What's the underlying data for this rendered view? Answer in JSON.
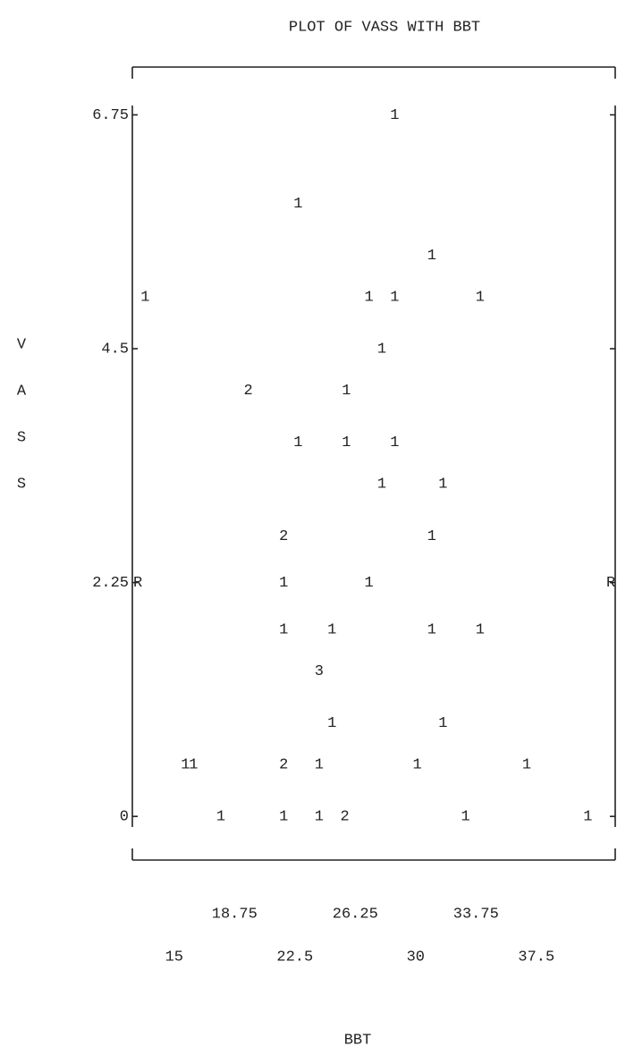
{
  "chart_data": {
    "type": "scatter",
    "title": "PLOT OF VASS WITH BBT",
    "x_label": "BBT",
    "y_label": [
      "V",
      "A",
      "S",
      "S"
    ],
    "ref_label": "R",
    "x": [
      28.7,
      22.7,
      31.0,
      13.2,
      27.1,
      28.7,
      34.0,
      27.9,
      19.6,
      25.7,
      22.7,
      25.7,
      28.7,
      27.9,
      31.7,
      21.8,
      31.0,
      21.8,
      27.1,
      21.8,
      24.8,
      31.0,
      34.0,
      24.0,
      24.8,
      31.7,
      15.7,
      16.2,
      21.8,
      24.0,
      30.1,
      36.9,
      17.9,
      21.8,
      24.0,
      25.6,
      33.1,
      40.7
    ],
    "values": [
      6.75,
      5.9,
      5.4,
      5.0,
      5.0,
      5.0,
      5.0,
      4.5,
      4.1,
      4.1,
      3.6,
      3.6,
      3.6,
      3.2,
      3.2,
      2.7,
      2.7,
      2.25,
      2.25,
      1.8,
      1.8,
      1.8,
      1.8,
      1.4,
      0.9,
      0.9,
      0.5,
      0.5,
      0.5,
      0.5,
      0.5,
      0.5,
      0,
      0,
      0,
      0,
      0,
      0
    ],
    "counts": [
      1,
      1,
      1,
      1,
      1,
      1,
      1,
      1,
      2,
      1,
      1,
      1,
      1,
      1,
      1,
      2,
      1,
      1,
      1,
      1,
      1,
      1,
      1,
      3,
      1,
      1,
      1,
      1,
      2,
      1,
      1,
      1,
      1,
      1,
      1,
      2,
      1,
      1
    ],
    "xlim": [
      12.4,
      42.4
    ],
    "ylim": [
      -0.42,
      7.21
    ],
    "xticks": [
      15,
      18.75,
      22.5,
      26.25,
      30,
      33.75,
      37.5
    ],
    "yticks": [
      0,
      2.25,
      4.5,
      6.75
    ],
    "color": "#222222"
  }
}
